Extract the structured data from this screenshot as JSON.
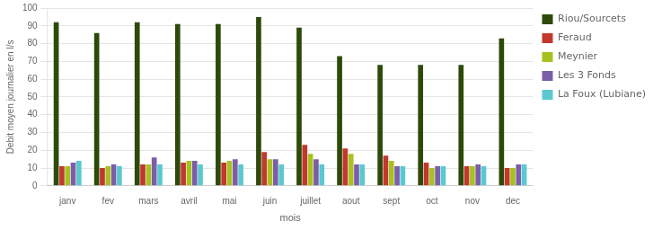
{
  "chart_data": {
    "type": "bar",
    "categories": [
      "janv",
      "fev",
      "mars",
      "avril",
      "mai",
      "juin",
      "juillet",
      "aout",
      "sept",
      "oct",
      "nov",
      "dec"
    ],
    "series": [
      {
        "name": "Riou/Sourcets",
        "color": "#2d4a0a",
        "values": [
          92,
          86,
          92,
          91,
          91,
          95,
          89,
          73,
          68,
          68,
          68,
          83
        ]
      },
      {
        "name": "Feraud",
        "color": "#c0392b",
        "values": [
          11,
          10,
          12,
          13,
          13,
          19,
          23,
          21,
          17,
          13,
          11,
          10
        ]
      },
      {
        "name": "Meynier",
        "color": "#a8c020",
        "values": [
          11,
          11,
          12,
          14,
          14,
          15,
          18,
          18,
          14,
          10,
          11,
          10
        ]
      },
      {
        "name": "Les 3 Fonds",
        "color": "#7b5ea7",
        "values": [
          13,
          12,
          16,
          14,
          15,
          15,
          15,
          12,
          11,
          11,
          12,
          12
        ]
      },
      {
        "name": "La Foux (Lubiane)",
        "color": "#5bc8d0",
        "values": [
          14,
          11,
          12,
          12,
          12,
          12,
          12,
          12,
          11,
          11,
          11,
          12
        ]
      }
    ],
    "xlabel": "mois",
    "ylabel": "Debit moyen journalier en l/s",
    "ylim": [
      0,
      100
    ],
    "yticks": [
      0,
      10,
      20,
      30,
      40,
      50,
      60,
      70,
      80,
      90,
      100
    ],
    "grid": true,
    "legend": "right"
  }
}
